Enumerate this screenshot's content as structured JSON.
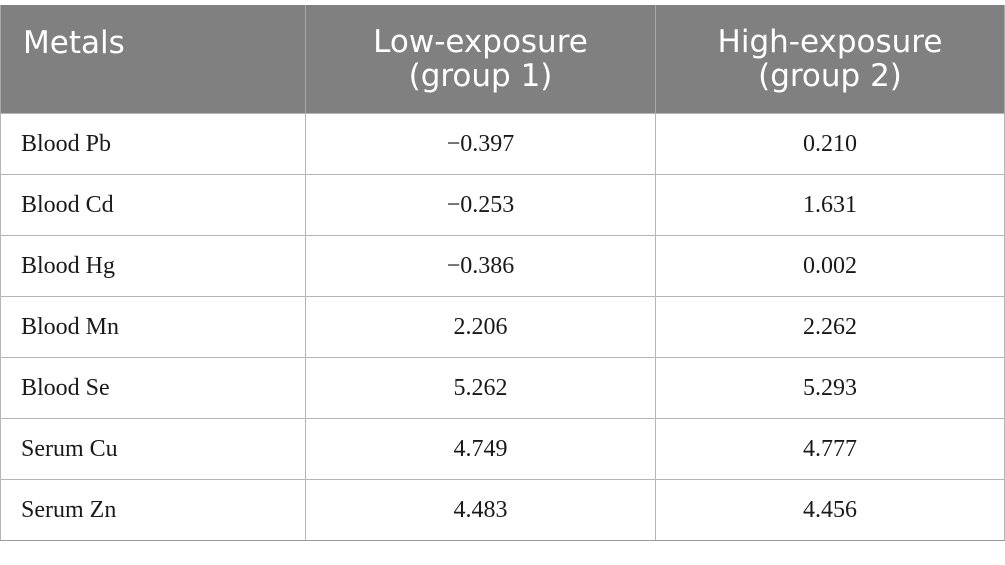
{
  "table": {
    "headers": {
      "col1": "Metals",
      "col2_line1": "Low-exposure",
      "col2_line2": "(group 1)",
      "col3_line1": "High-exposure",
      "col3_line2": "(group 2)"
    },
    "rows": [
      {
        "metal": "Blood Pb",
        "low": "−0.397",
        "high": "0.210"
      },
      {
        "metal": "Blood Cd",
        "low": "−0.253",
        "high": "1.631"
      },
      {
        "metal": "Blood Hg",
        "low": "−0.386",
        "high": "0.002"
      },
      {
        "metal": "Blood Mn",
        "low": "2.206",
        "high": "2.262"
      },
      {
        "metal": "Blood Se",
        "low": "5.262",
        "high": "5.293"
      },
      {
        "metal": "Serum Cu",
        "low": "4.749",
        "high": "4.777"
      },
      {
        "metal": "Serum Zn",
        "low": "4.483",
        "high": "4.456"
      }
    ]
  }
}
